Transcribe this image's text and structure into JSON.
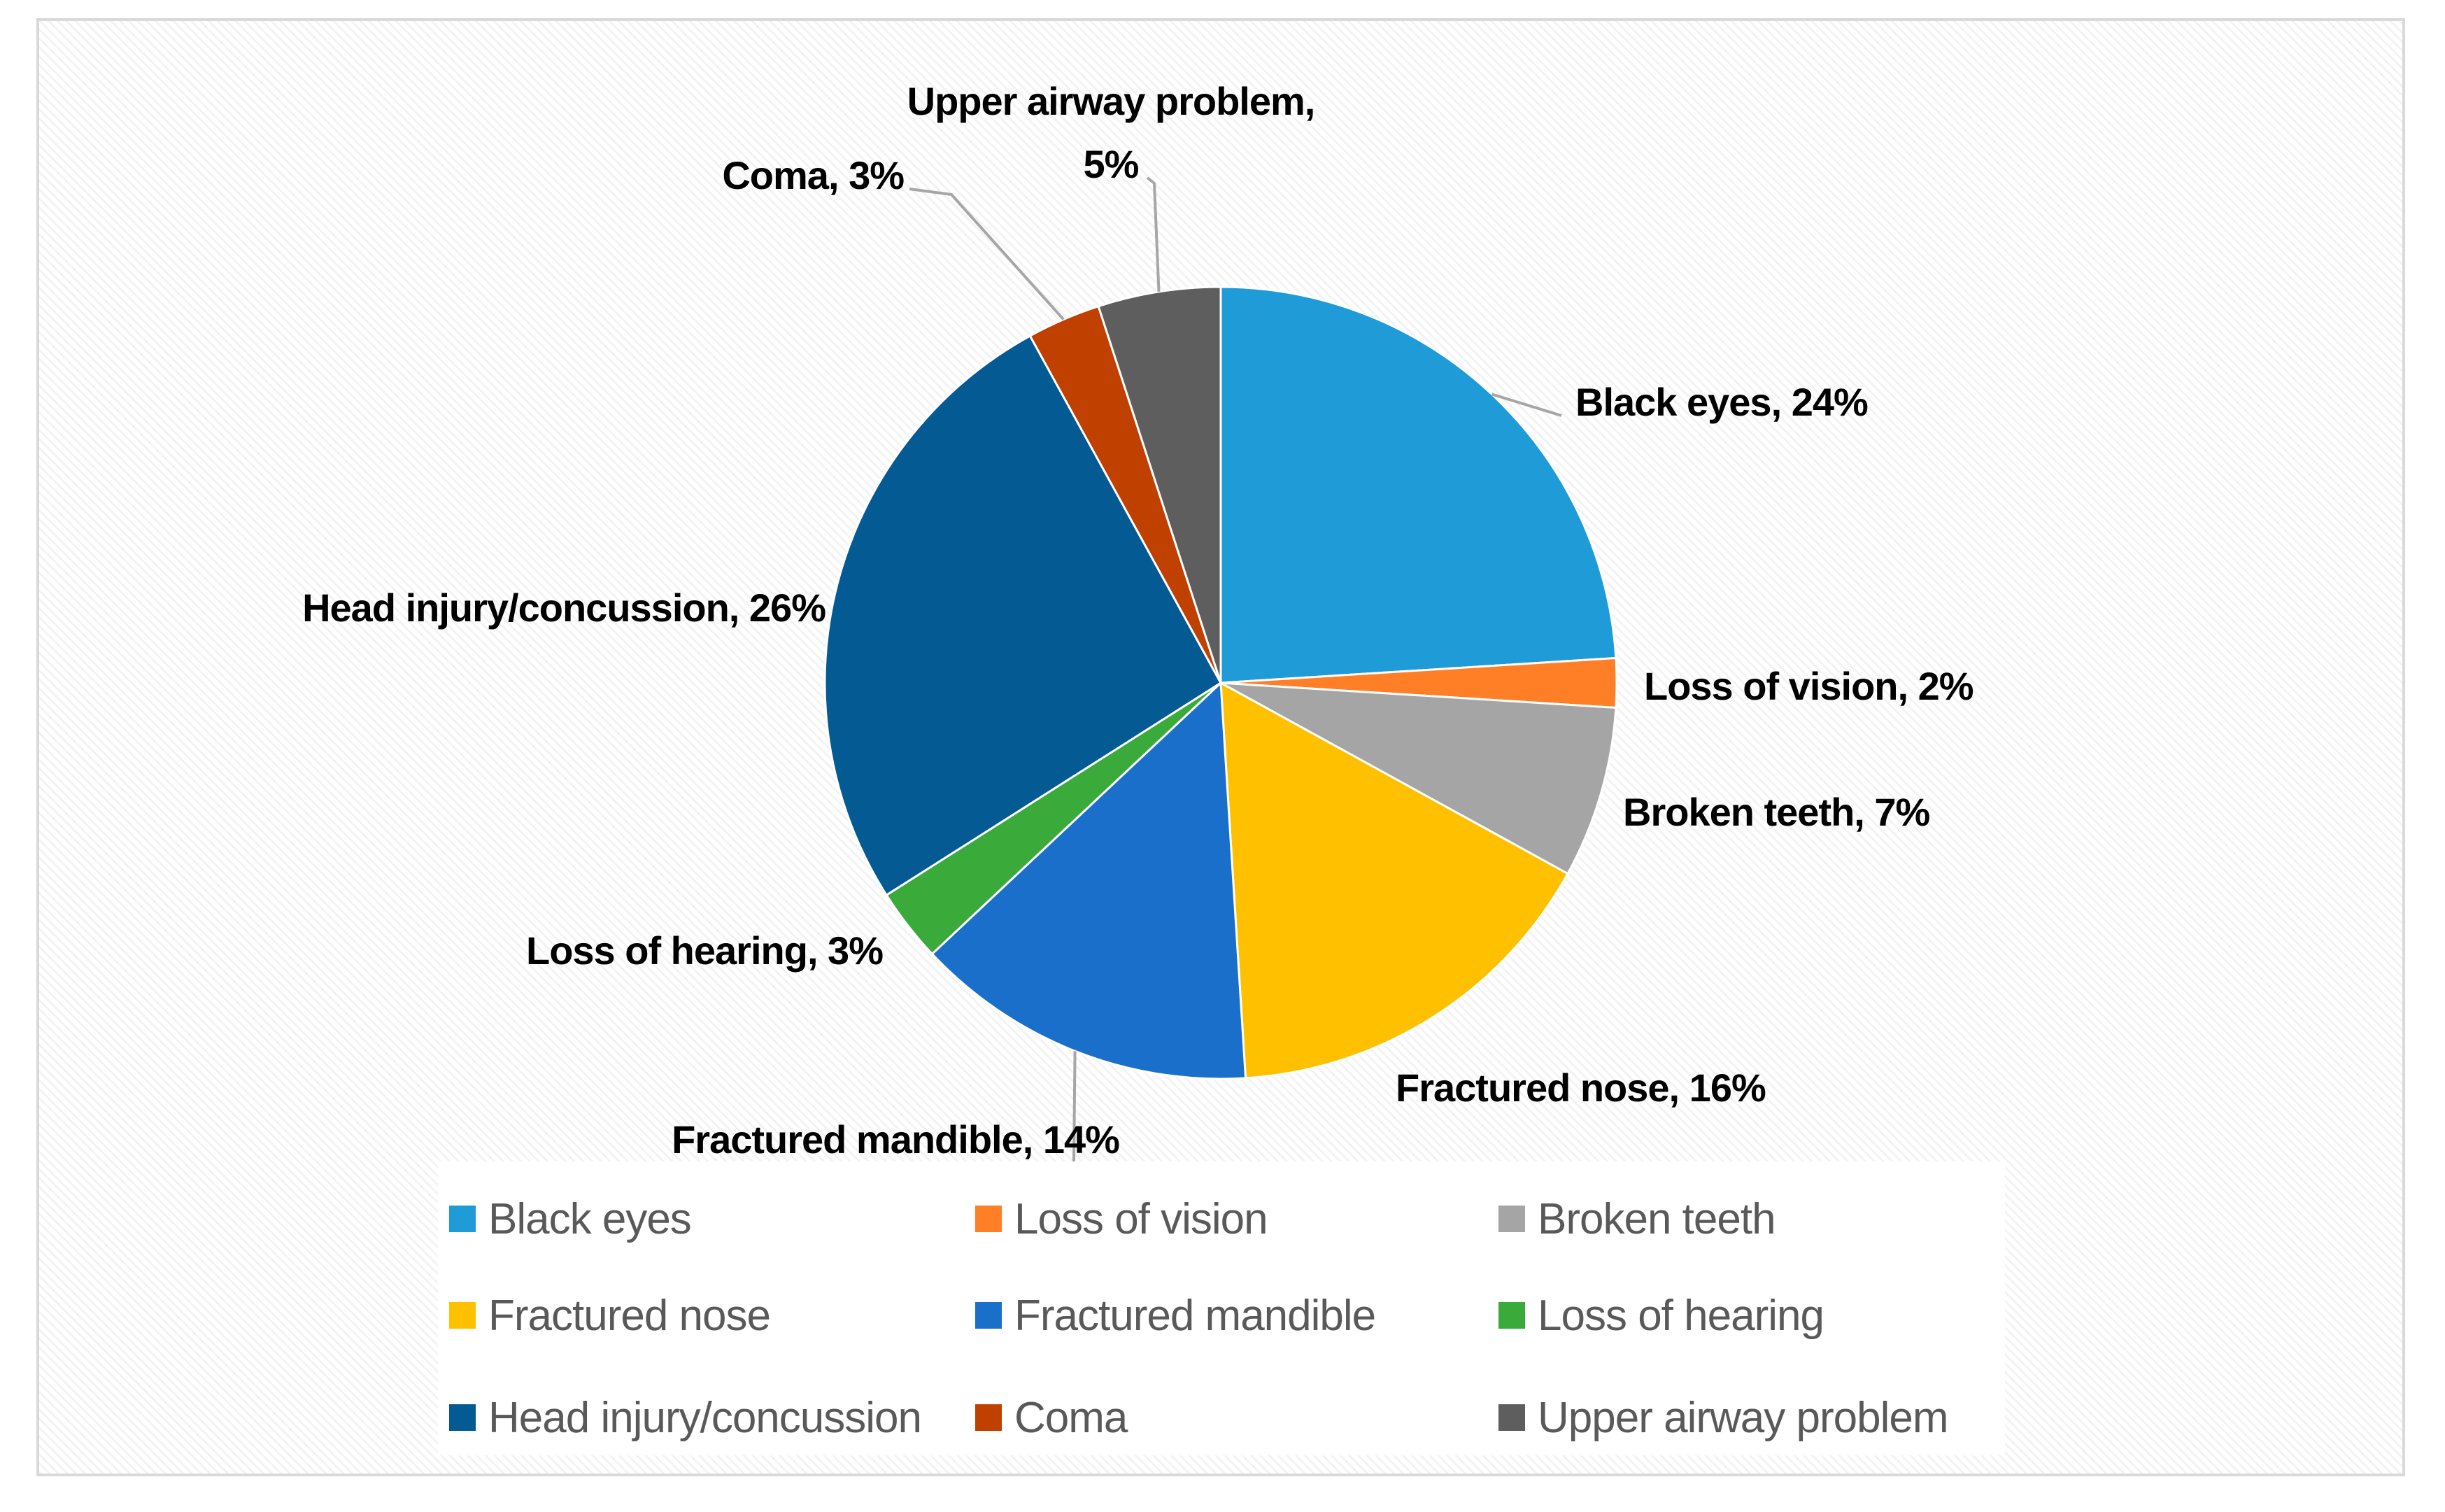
{
  "chart_data": {
    "type": "pie",
    "title": "",
    "legend_position": "bottom",
    "slices": [
      {
        "name": "Black eyes",
        "value": 24,
        "label": "Black eyes, 24%",
        "color": "#1f9bd7"
      },
      {
        "name": "Loss of vision",
        "value": 2,
        "label": "Loss of vision, 2%",
        "color": "#ff7f27"
      },
      {
        "name": "Broken teeth",
        "value": 7,
        "label": "Broken teeth, 7%",
        "color": "#a5a5a5"
      },
      {
        "name": "Fractured nose",
        "value": 16,
        "label": "Fractured nose, 16%",
        "color": "#ffc000"
      },
      {
        "name": "Fractured mandible",
        "value": 14,
        "label": "Fractured mandible, 14%",
        "color": "#1a6fcb"
      },
      {
        "name": "Loss of hearing",
        "value": 3,
        "label": "Loss of hearing, 3%",
        "color": "#3aaa3a"
      },
      {
        "name": "Head injury/concussion",
        "value": 26,
        "label": "Head injury/concussion, 26%",
        "color": "#045a93"
      },
      {
        "name": "Coma",
        "value": 3,
        "label": "Coma, 3%",
        "color": "#c04000"
      },
      {
        "name": "Upper airway problem",
        "value": 5,
        "label_lines": [
          "Upper airway problem,",
          "5%"
        ],
        "color": "#5e5e5e"
      }
    ]
  }
}
